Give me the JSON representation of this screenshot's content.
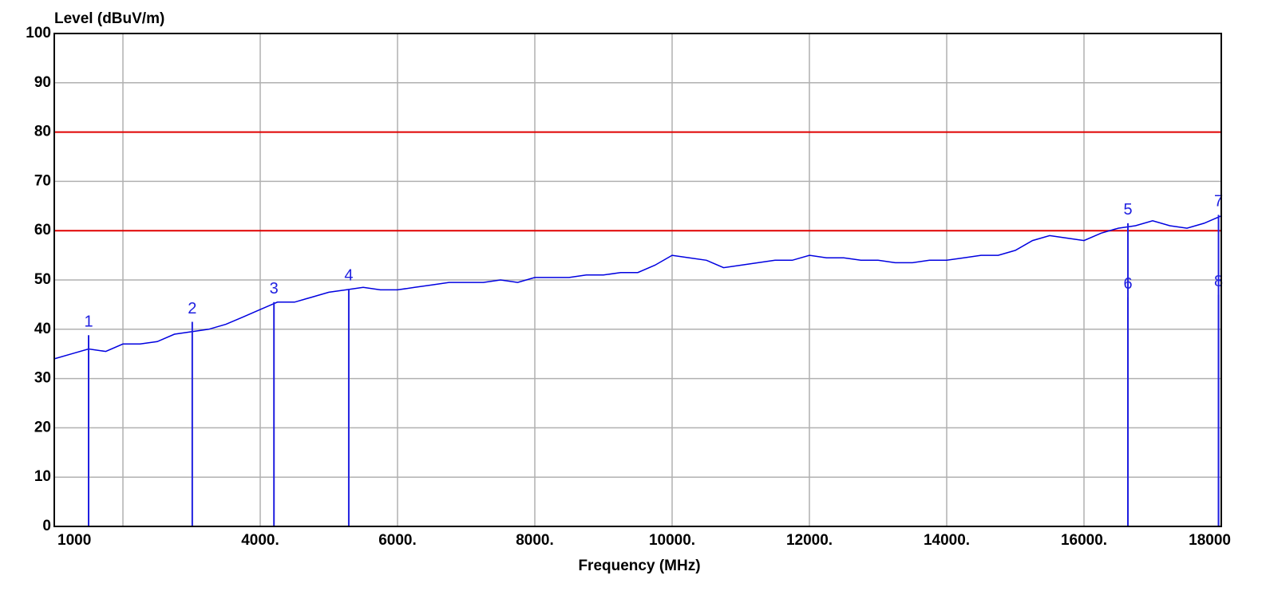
{
  "chart_data": {
    "type": "line",
    "title": "Level (dBuV/m)",
    "x_label": "Frequency (MHz)",
    "xlim": [
      1000,
      18000
    ],
    "ylim": [
      0,
      100
    ],
    "xticks": [
      {
        "value": 1000,
        "label": "1000"
      },
      {
        "value": 4000,
        "label": "4000."
      },
      {
        "value": 6000,
        "label": "6000."
      },
      {
        "value": 8000,
        "label": "8000."
      },
      {
        "value": 10000,
        "label": "10000."
      },
      {
        "value": 12000,
        "label": "12000."
      },
      {
        "value": 14000,
        "label": "14000."
      },
      {
        "value": 16000,
        "label": "16000."
      },
      {
        "value": 18000,
        "label": "18000"
      }
    ],
    "xgrid": [
      2000,
      4000,
      6000,
      8000,
      10000,
      12000,
      14000,
      16000
    ],
    "yticks": [
      0,
      10,
      20,
      30,
      40,
      50,
      60,
      70,
      80,
      90,
      100
    ],
    "grid": true,
    "limit_lines": [
      {
        "value": 80,
        "color": "#e00000"
      },
      {
        "value": 60,
        "color": "#e00000"
      }
    ],
    "series": [
      {
        "color": "#0000e0",
        "x": [
          1000,
          1250,
          1500,
          1750,
          2000,
          2250,
          2500,
          2750,
          3000,
          3250,
          3500,
          3750,
          4000,
          4250,
          4500,
          4750,
          5000,
          5250,
          5500,
          5750,
          6000,
          6250,
          6500,
          6750,
          7000,
          7250,
          7500,
          7750,
          8000,
          8250,
          8500,
          8750,
          9000,
          9250,
          9500,
          9750,
          10000,
          10250,
          10500,
          10750,
          11000,
          11250,
          11500,
          11750,
          12000,
          12250,
          12500,
          12750,
          13000,
          13250,
          13500,
          13750,
          14000,
          14250,
          14500,
          14750,
          15000,
          15250,
          15500,
          15750,
          16000,
          16250,
          16500,
          16750,
          17000,
          17250,
          17500,
          17750,
          18000
        ],
        "values": [
          34,
          35,
          36,
          35.5,
          37,
          37,
          37.5,
          39,
          39.5,
          40,
          41,
          42.5,
          44,
          45.5,
          45.5,
          46.5,
          47.5,
          48,
          48.5,
          48,
          48,
          48.5,
          49,
          49.5,
          49.5,
          49.5,
          50,
          49.5,
          50.5,
          50.5,
          50.5,
          51,
          51,
          51.5,
          51.5,
          53,
          55,
          54.5,
          54,
          52.5,
          53,
          53.5,
          54,
          54,
          55,
          54.5,
          54.5,
          54,
          54,
          53.5,
          53.5,
          54,
          54,
          54.5,
          55,
          55,
          56,
          58,
          59,
          58.5,
          58,
          59.5,
          60.5,
          61,
          62,
          61,
          60.5,
          61.5,
          63
        ]
      }
    ],
    "markers": [
      {
        "label": "1",
        "x": 1500,
        "value": 38.8
      },
      {
        "label": "2",
        "x": 3010,
        "value": 41.5
      },
      {
        "label": "3",
        "x": 4200,
        "value": 45.5
      },
      {
        "label": "4",
        "x": 5290,
        "value": 48.2
      },
      {
        "label": "5",
        "x": 16640,
        "value": 61.5
      },
      {
        "label": "6",
        "x": 16640,
        "value": 46.5
      },
      {
        "label": "7",
        "x": 17960,
        "value": 63.2
      },
      {
        "label": "8",
        "x": 17960,
        "value": 47
      }
    ],
    "marker_color": "#2020e0"
  }
}
